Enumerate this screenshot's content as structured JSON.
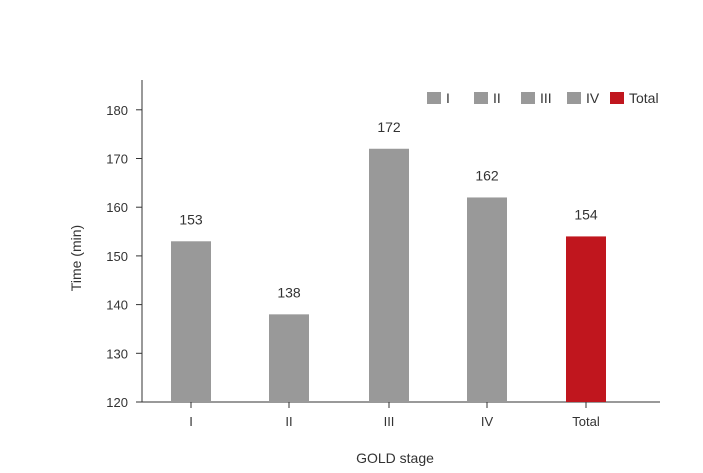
{
  "chart_data": {
    "type": "bar",
    "categories": [
      "I",
      "II",
      "III",
      "IV",
      "Total"
    ],
    "values": [
      153,
      138,
      172,
      162,
      154
    ],
    "value_labels": [
      "153",
      "138",
      "172",
      "162",
      "154"
    ],
    "colors": [
      "#999999",
      "#999999",
      "#999999",
      "#999999",
      "#c0161e"
    ],
    "xlabel": "GOLD stage",
    "ylabel": "Time (min)",
    "ylim": [
      120,
      185
    ],
    "yticks": [
      120,
      130,
      140,
      150,
      160,
      170,
      180
    ],
    "grid": false,
    "legend": {
      "position": "top-right",
      "entries": [
        {
          "label": "I",
          "color": "#999999"
        },
        {
          "label": "II",
          "color": "#999999"
        },
        {
          "label": "III",
          "color": "#999999"
        },
        {
          "label": "IV",
          "color": "#999999"
        },
        {
          "label": "Total",
          "color": "#c0161e"
        }
      ]
    }
  }
}
